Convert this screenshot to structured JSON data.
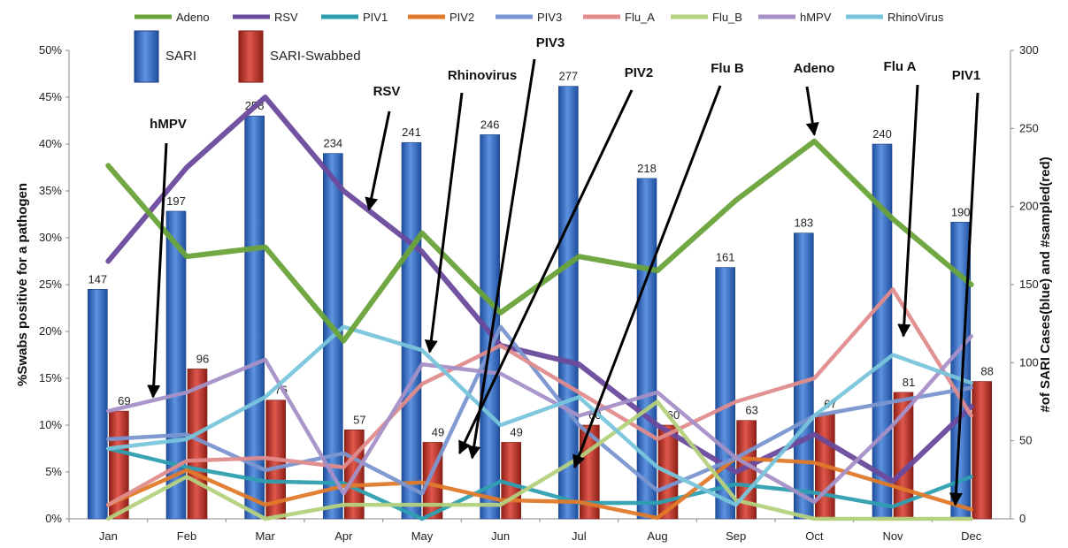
{
  "chart_data": {
    "type": "bar",
    "categories": [
      "Jan",
      "Feb",
      "Mar",
      "Apr",
      "May",
      "Jun",
      "Jul",
      "Aug",
      "Sep",
      "Oct",
      "Nov",
      "Dec"
    ],
    "bar_series": [
      {
        "name": "SARI",
        "color": "#3b6fc4",
        "values": [
          147,
          197,
          258,
          234,
          241,
          246,
          277,
          218,
          161,
          183,
          240,
          190
        ]
      },
      {
        "name": "SARI-Swabbed",
        "color": "#c0392b",
        "values": [
          69,
          96,
          76,
          57,
          49,
          49,
          60,
          60,
          63,
          67,
          81,
          88
        ]
      }
    ],
    "line_series": [
      {
        "name": "Adeno",
        "color": "#6aa33a",
        "values": [
          37.7,
          28,
          29,
          19,
          30.5,
          22,
          28,
          26.5,
          34,
          40.3,
          32,
          25
        ]
      },
      {
        "name": "RSV",
        "color": "#6a4a9c",
        "values": [
          27.5,
          37.5,
          45,
          35,
          28.5,
          18.5,
          16.5,
          10,
          5,
          9,
          4,
          12
        ]
      },
      {
        "name": "PIV1",
        "color": "#2e9fb0",
        "values": [
          7.5,
          5.5,
          4,
          3.8,
          0,
          4,
          1.7,
          1.7,
          3.7,
          2.8,
          1.3,
          4.5
        ]
      },
      {
        "name": "PIV2",
        "color": "#e07a2a",
        "values": [
          1.5,
          5.2,
          1.5,
          3.5,
          3.9,
          2,
          1.8,
          0.1,
          6.5,
          6,
          3.5,
          1
        ]
      },
      {
        "name": "PIV3",
        "color": "#7a96d0",
        "values": [
          8.5,
          9,
          5.2,
          7,
          2.7,
          20.5,
          10,
          3,
          6.5,
          11,
          12.5,
          14
        ]
      },
      {
        "name": "Flu_A",
        "color": "#e08c8c",
        "values": [
          1.5,
          6.2,
          6.5,
          5.5,
          14.4,
          18.5,
          13.5,
          8.5,
          12.5,
          15,
          24.5,
          11
        ]
      },
      {
        "name": "Flu_B",
        "color": "#b5d17e",
        "values": [
          0,
          4.5,
          0,
          1.5,
          1.5,
          1.5,
          6.5,
          12.5,
          2,
          0,
          0,
          0
        ]
      },
      {
        "name": "hMPV",
        "color": "#a590c7",
        "values": [
          11.5,
          13.5,
          17,
          2.7,
          16.5,
          15.5,
          11,
          13.5,
          6.5,
          1.8,
          10,
          19.5
        ]
      },
      {
        "name": "RhinoVirus",
        "color": "#78c5db",
        "values": [
          7.5,
          8.5,
          13,
          20.5,
          18,
          10,
          13,
          5.5,
          1.5,
          11,
          17.5,
          14.5
        ]
      }
    ],
    "y_left": {
      "label": "%Swabs positive for a pathogen",
      "min": 0,
      "max": 50,
      "ticks": [
        "0%",
        "5%",
        "10%",
        "15%",
        "20%",
        "25%",
        "30%",
        "35%",
        "40%",
        "45%",
        "50%"
      ]
    },
    "y_right": {
      "label": "#of SARI Cases(blue) and #sampled(red)",
      "min": 0,
      "max": 300,
      "ticks": [
        "0",
        "50",
        "100",
        "150",
        "200",
        "250",
        "300"
      ]
    },
    "legend_lines": [
      "Adeno",
      "RSV",
      "PIV1",
      "PIV2",
      "PIV3",
      "Flu_A",
      "Flu_B",
      "hMPV",
      "RhinoVirus"
    ],
    "legend_bars": [
      "SARI",
      "SARI-Swabbed"
    ],
    "annotations": [
      {
        "text": "hMPV",
        "month": "Feb",
        "value": 13
      },
      {
        "text": "RSV",
        "month": "May",
        "value": 33
      },
      {
        "text": "Rhinovirus",
        "month": "Jun",
        "value": 17.8
      },
      {
        "text": "PIV3",
        "month": "Jun",
        "value": 6.5
      },
      {
        "text": "PIV2",
        "month": "Jul",
        "value": 7
      },
      {
        "text": "Flu B",
        "month": "Jul",
        "value": 5.5
      },
      {
        "text": "Adeno",
        "month": "Oct",
        "value": 41
      },
      {
        "text": "Flu A",
        "month": "Nov",
        "value": 19.5
      },
      {
        "text": "PIV1",
        "month": "Dec",
        "value": 1.5
      }
    ],
    "grid": false
  }
}
